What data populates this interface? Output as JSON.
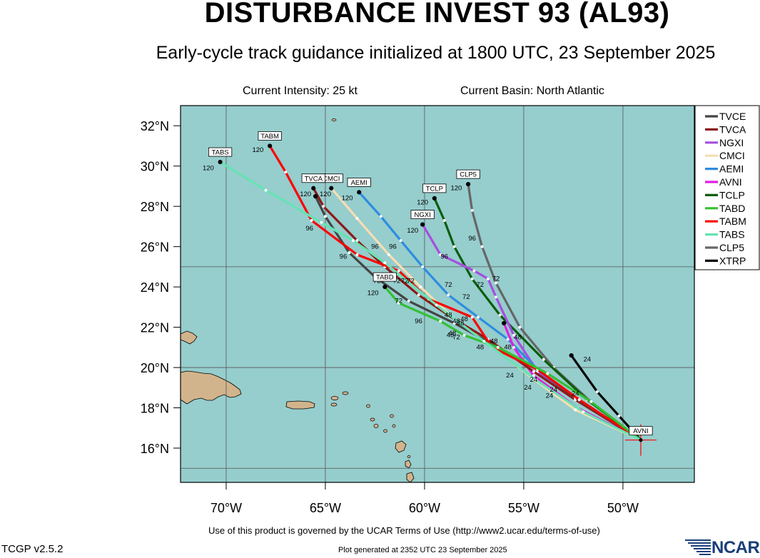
{
  "title": "DISTURBANCE INVEST 93 (AL93)",
  "subtitle": "Early-cycle track guidance initialized at 1800 UTC, 23 September 2025",
  "current_intensity": "Current Intensity: 25 kt",
  "current_basin": "Current Basin: North Atlantic",
  "terms": "Use of this product is governed by the UCAR Terms of Use (http://www2.ucar.edu/terms-of-use)",
  "version": "TCGP v2.5.2",
  "generated": "Plot generated at 2352 UTC   23 September 2025",
  "logo_text": "NCAR",
  "map": {
    "lon_range": [
      -72.3,
      -46.4
    ],
    "lat_range": [
      14.3,
      33.0
    ],
    "lon_ticks": [
      {
        "value": -70,
        "label": "70°W"
      },
      {
        "value": -65,
        "label": "65°W"
      },
      {
        "value": -60,
        "label": "60°W"
      },
      {
        "value": -55,
        "label": "55°W"
      },
      {
        "value": -50,
        "label": "50°W"
      }
    ],
    "lat_ticks": [
      {
        "value": 32,
        "label": "32°N"
      },
      {
        "value": 30,
        "label": "30°N"
      },
      {
        "value": 28,
        "label": "28°N"
      },
      {
        "value": 26,
        "label": "26°N"
      },
      {
        "value": 24,
        "label": "24°N"
      },
      {
        "value": 22,
        "label": "22°N"
      },
      {
        "value": 20,
        "label": "20°N"
      },
      {
        "value": 18,
        "label": "18°N"
      },
      {
        "value": 16,
        "label": "16°N"
      }
    ],
    "grid_lons": [
      -70,
      -65,
      -60,
      -55,
      -50
    ],
    "grid_lats": [
      25,
      20,
      15
    ],
    "ocean_color": "#96cdcd",
    "land_color": "#d2b48c",
    "current_position": {
      "lat": 16.4,
      "lon": -49.1,
      "label": "AVNI"
    }
  },
  "legend": [
    {
      "name": "TVCE",
      "color": "#444444"
    },
    {
      "name": "TVCA",
      "color": "#8b1a1a"
    },
    {
      "name": "NGXI",
      "color": "#a64ee0"
    },
    {
      "name": "CMCI",
      "color": "#f5deb3"
    },
    {
      "name": "AEMI",
      "color": "#2e8de0"
    },
    {
      "name": "AVNI",
      "color": "#e020e0"
    },
    {
      "name": "TCLP",
      "color": "#0b5d0b"
    },
    {
      "name": "TABD",
      "color": "#33c033"
    },
    {
      "name": "TABM",
      "color": "#ff0000"
    },
    {
      "name": "TABS",
      "color": "#66e3b3"
    },
    {
      "name": "CLP5",
      "color": "#666666"
    },
    {
      "name": "XTRP",
      "color": "#000000"
    }
  ],
  "tracks": [
    {
      "name": "XTRP",
      "color": "#000000",
      "points": [
        [
          -49.1,
          16.4
        ],
        [
          -50.2,
          17.6
        ],
        [
          -51.3,
          18.8
        ],
        [
          -52.6,
          20.6
        ]
      ],
      "labels": [
        {
          "lon": -51.8,
          "lat": 20.3,
          "text": "24"
        }
      ],
      "end_label": ""
    },
    {
      "name": "CLP5",
      "color": "#666666",
      "points": [
        [
          -49.1,
          16.4
        ],
        [
          -51.5,
          18.2
        ],
        [
          -53.5,
          20.0
        ],
        [
          -55.2,
          22.0
        ],
        [
          -56.4,
          24.2
        ],
        [
          -57.1,
          26.0
        ],
        [
          -57.6,
          27.8
        ],
        [
          -57.8,
          29.1
        ]
      ],
      "labels": [
        {
          "lon": -57.6,
          "lat": 26.3,
          "text": "96"
        },
        {
          "lon": -58.4,
          "lat": 28.8,
          "text": "120"
        }
      ],
      "end_label": "CLP5"
    },
    {
      "name": "TCLP",
      "color": "#0b5d0b",
      "points": [
        [
          -49.1,
          16.4
        ],
        [
          -51.8,
          18.4
        ],
        [
          -54.0,
          20.4
        ],
        [
          -56.2,
          22.6
        ],
        [
          -57.6,
          24.4
        ],
        [
          -58.5,
          26.0
        ],
        [
          -59.0,
          27.3
        ],
        [
          -59.5,
          28.4
        ]
      ],
      "labels": [
        {
          "lon": -58.8,
          "lat": 24.0,
          "text": "72"
        },
        {
          "lon": -60.1,
          "lat": 28.1,
          "text": "120"
        }
      ],
      "end_label": "TCLP"
    },
    {
      "name": "NGXI",
      "color": "#a64ee0",
      "points": [
        [
          -49.1,
          16.4
        ],
        [
          -52.0,
          18.2
        ],
        [
          -54.3,
          19.8
        ],
        [
          -55.5,
          21.6
        ],
        [
          -56.4,
          23.5
        ],
        [
          -56.8,
          24.4
        ],
        [
          -57.5,
          24.8
        ],
        [
          -59.2,
          25.6
        ],
        [
          -60.1,
          27.1
        ]
      ],
      "labels": [
        {
          "lon": -59.0,
          "lat": 25.4,
          "text": "96"
        },
        {
          "lon": -57.2,
          "lat": 24.0,
          "text": "72"
        },
        {
          "lon": -60.6,
          "lat": 26.7,
          "text": "120"
        }
      ],
      "end_label": "NGXI"
    },
    {
      "name": "AEMI",
      "color": "#2e8de0",
      "points": [
        [
          -49.1,
          16.4
        ],
        [
          -52.2,
          18.3
        ],
        [
          -54.3,
          19.9
        ],
        [
          -55.8,
          21.4
        ],
        [
          -57.3,
          22.5
        ],
        [
          -58.8,
          23.6
        ],
        [
          -60.1,
          25.0
        ],
        [
          -61.2,
          26.3
        ],
        [
          -62.2,
          27.5
        ],
        [
          -63.3,
          28.7
        ]
      ],
      "labels": [
        {
          "lon": -57.9,
          "lat": 23.4,
          "text": "72"
        },
        {
          "lon": -58.2,
          "lat": 22.1,
          "text": "48"
        },
        {
          "lon": -61.6,
          "lat": 25.9,
          "text": "96"
        },
        {
          "lon": -63.9,
          "lat": 28.3,
          "text": "120"
        }
      ],
      "end_label": "AEMI"
    },
    {
      "name": "AVNI",
      "color": "#e020e0",
      "points": [
        [
          -49.1,
          16.4
        ],
        [
          -52.3,
          18.0
        ],
        [
          -54.5,
          19.6
        ],
        [
          -55.5,
          21.0
        ],
        [
          -56.0,
          22.2
        ]
      ],
      "labels": [
        {
          "lon": -55.8,
          "lat": 20.9,
          "text": "48"
        }
      ],
      "end_label": ""
    },
    {
      "name": "CMCI",
      "color": "#f5deb3",
      "points": [
        [
          -49.1,
          16.4
        ],
        [
          -52.4,
          17.9
        ],
        [
          -54.6,
          19.5
        ],
        [
          -56.8,
          21.2
        ],
        [
          -58.6,
          22.5
        ],
        [
          -60.2,
          24.0
        ],
        [
          -61.8,
          25.6
        ],
        [
          -63.4,
          27.4
        ],
        [
          -64.7,
          28.9
        ]
      ],
      "labels": [
        {
          "lon": -56.5,
          "lat": 21.2,
          "text": "48"
        },
        {
          "lon": -61.4,
          "lat": 24.2,
          "text": "72"
        },
        {
          "lon": -65.0,
          "lat": 28.5,
          "text": "120"
        }
      ],
      "end_label": "CMCI"
    },
    {
      "name": "TVCA",
      "color": "#8b1a1a",
      "points": [
        [
          -49.1,
          16.4
        ],
        [
          -52.4,
          18.4
        ],
        [
          -54.5,
          19.8
        ],
        [
          -56.8,
          21.4
        ],
        [
          -58.5,
          22.4
        ],
        [
          -60.3,
          23.6
        ],
        [
          -62.0,
          25.0
        ],
        [
          -63.4,
          26.3
        ],
        [
          -65.1,
          28.0
        ],
        [
          -65.6,
          28.9
        ]
      ],
      "labels": [
        {
          "lon": -62.5,
          "lat": 25.9,
          "text": "96"
        },
        {
          "lon": -61.0,
          "lat": 24.2,
          "text": "72"
        },
        {
          "lon": -66.0,
          "lat": 28.5,
          "text": "120"
        }
      ],
      "end_label": "TVCA"
    },
    {
      "name": "TVCE",
      "color": "#444444",
      "points": [
        [
          -49.1,
          16.4
        ],
        [
          -52.4,
          18.5
        ],
        [
          -54.3,
          19.9
        ],
        [
          -56.3,
          21.0
        ],
        [
          -58.5,
          22.2
        ],
        [
          -60.8,
          23.3
        ],
        [
          -62.5,
          24.5
        ],
        [
          -63.8,
          25.7
        ],
        [
          -65.0,
          27.5
        ],
        [
          -65.5,
          28.5
        ]
      ],
      "labels": [
        {
          "lon": -64.1,
          "lat": 25.4,
          "text": "96"
        },
        {
          "lon": -62.4,
          "lat": 24.2,
          "text": "72"
        }
      ],
      "end_label": ""
    },
    {
      "name": "TABM",
      "color": "#ff0000",
      "points": [
        [
          -49.1,
          16.4
        ],
        [
          -52.2,
          18.4
        ],
        [
          -54.3,
          19.9
        ],
        [
          -56.6,
          21.0
        ],
        [
          -57.6,
          22.5
        ],
        [
          -59.8,
          23.4
        ],
        [
          -61.3,
          24.8
        ],
        [
          -63.4,
          25.6
        ],
        [
          -65.7,
          27.3
        ],
        [
          -67.0,
          29.7
        ],
        [
          -67.8,
          31.0
        ]
      ],
      "labels": [
        {
          "lon": -58.0,
          "lat": 22.3,
          "text": "48"
        },
        {
          "lon": -68.4,
          "lat": 30.7,
          "text": "120"
        }
      ],
      "end_label": "TABM"
    },
    {
      "name": "TABD",
      "color": "#33c033",
      "points": [
        [
          -49.1,
          16.4
        ],
        [
          -51.6,
          18.3
        ],
        [
          -53.8,
          19.7
        ],
        [
          -56.3,
          21.0
        ],
        [
          -58.0,
          21.6
        ],
        [
          -59.2,
          22.3
        ],
        [
          -61.3,
          23.2
        ],
        [
          -62.0,
          24.0
        ]
      ],
      "labels": [
        {
          "lon": -58.6,
          "lat": 21.6,
          "text": "48"
        },
        {
          "lon": -60.3,
          "lat": 22.2,
          "text": "96"
        },
        {
          "lon": -61.3,
          "lat": 23.2,
          "text": "72"
        },
        {
          "lon": -62.6,
          "lat": 23.6,
          "text": "120"
        }
      ],
      "end_label": "TABD"
    },
    {
      "name": "TABS",
      "color": "#66e3b3",
      "points": [
        [
          -49.1,
          16.4
        ],
        [
          -52.0,
          17.8
        ],
        [
          -54.4,
          19.4
        ],
        [
          -57.0,
          21.3
        ],
        [
          -59.4,
          23.1
        ],
        [
          -62.0,
          25.2
        ],
        [
          -63.6,
          26.3
        ],
        [
          -65.2,
          27.2
        ],
        [
          -68.0,
          28.8
        ],
        [
          -70.3,
          30.2
        ]
      ],
      "labels": [
        {
          "lon": -65.8,
          "lat": 26.8,
          "text": "96"
        },
        {
          "lon": -70.9,
          "lat": 29.8,
          "text": "120"
        }
      ],
      "end_label": "TABS"
    }
  ],
  "extra_hour_labels": [
    {
      "lon": -55.7,
      "lat": 19.5,
      "text": "24"
    },
    {
      "lon": -54.5,
      "lat": 19.3,
      "text": "24"
    },
    {
      "lon": -54.8,
      "lat": 18.9,
      "text": "24"
    },
    {
      "lon": -53.5,
      "lat": 18.8,
      "text": "24"
    },
    {
      "lon": -53.7,
      "lat": 18.5,
      "text": "24"
    },
    {
      "lon": -52.4,
      "lat": 18.6,
      "text": "24"
    },
    {
      "lon": -57.2,
      "lat": 20.9,
      "text": "48"
    },
    {
      "lon": -58.8,
      "lat": 22.5,
      "text": "48"
    },
    {
      "lon": -58.4,
      "lat": 21.4,
      "text": "72"
    },
    {
      "lon": -58.7,
      "lat": 21.5,
      "text": "48"
    },
    {
      "lon": -56.4,
      "lat": 24.3,
      "text": "72"
    },
    {
      "lon": -60.7,
      "lat": 24.2,
      "text": "72"
    },
    {
      "lon": -55.3,
      "lat": 21.4,
      "text": "48"
    },
    {
      "lon": -58.4,
      "lat": 22.2,
      "text": "48"
    }
  ]
}
